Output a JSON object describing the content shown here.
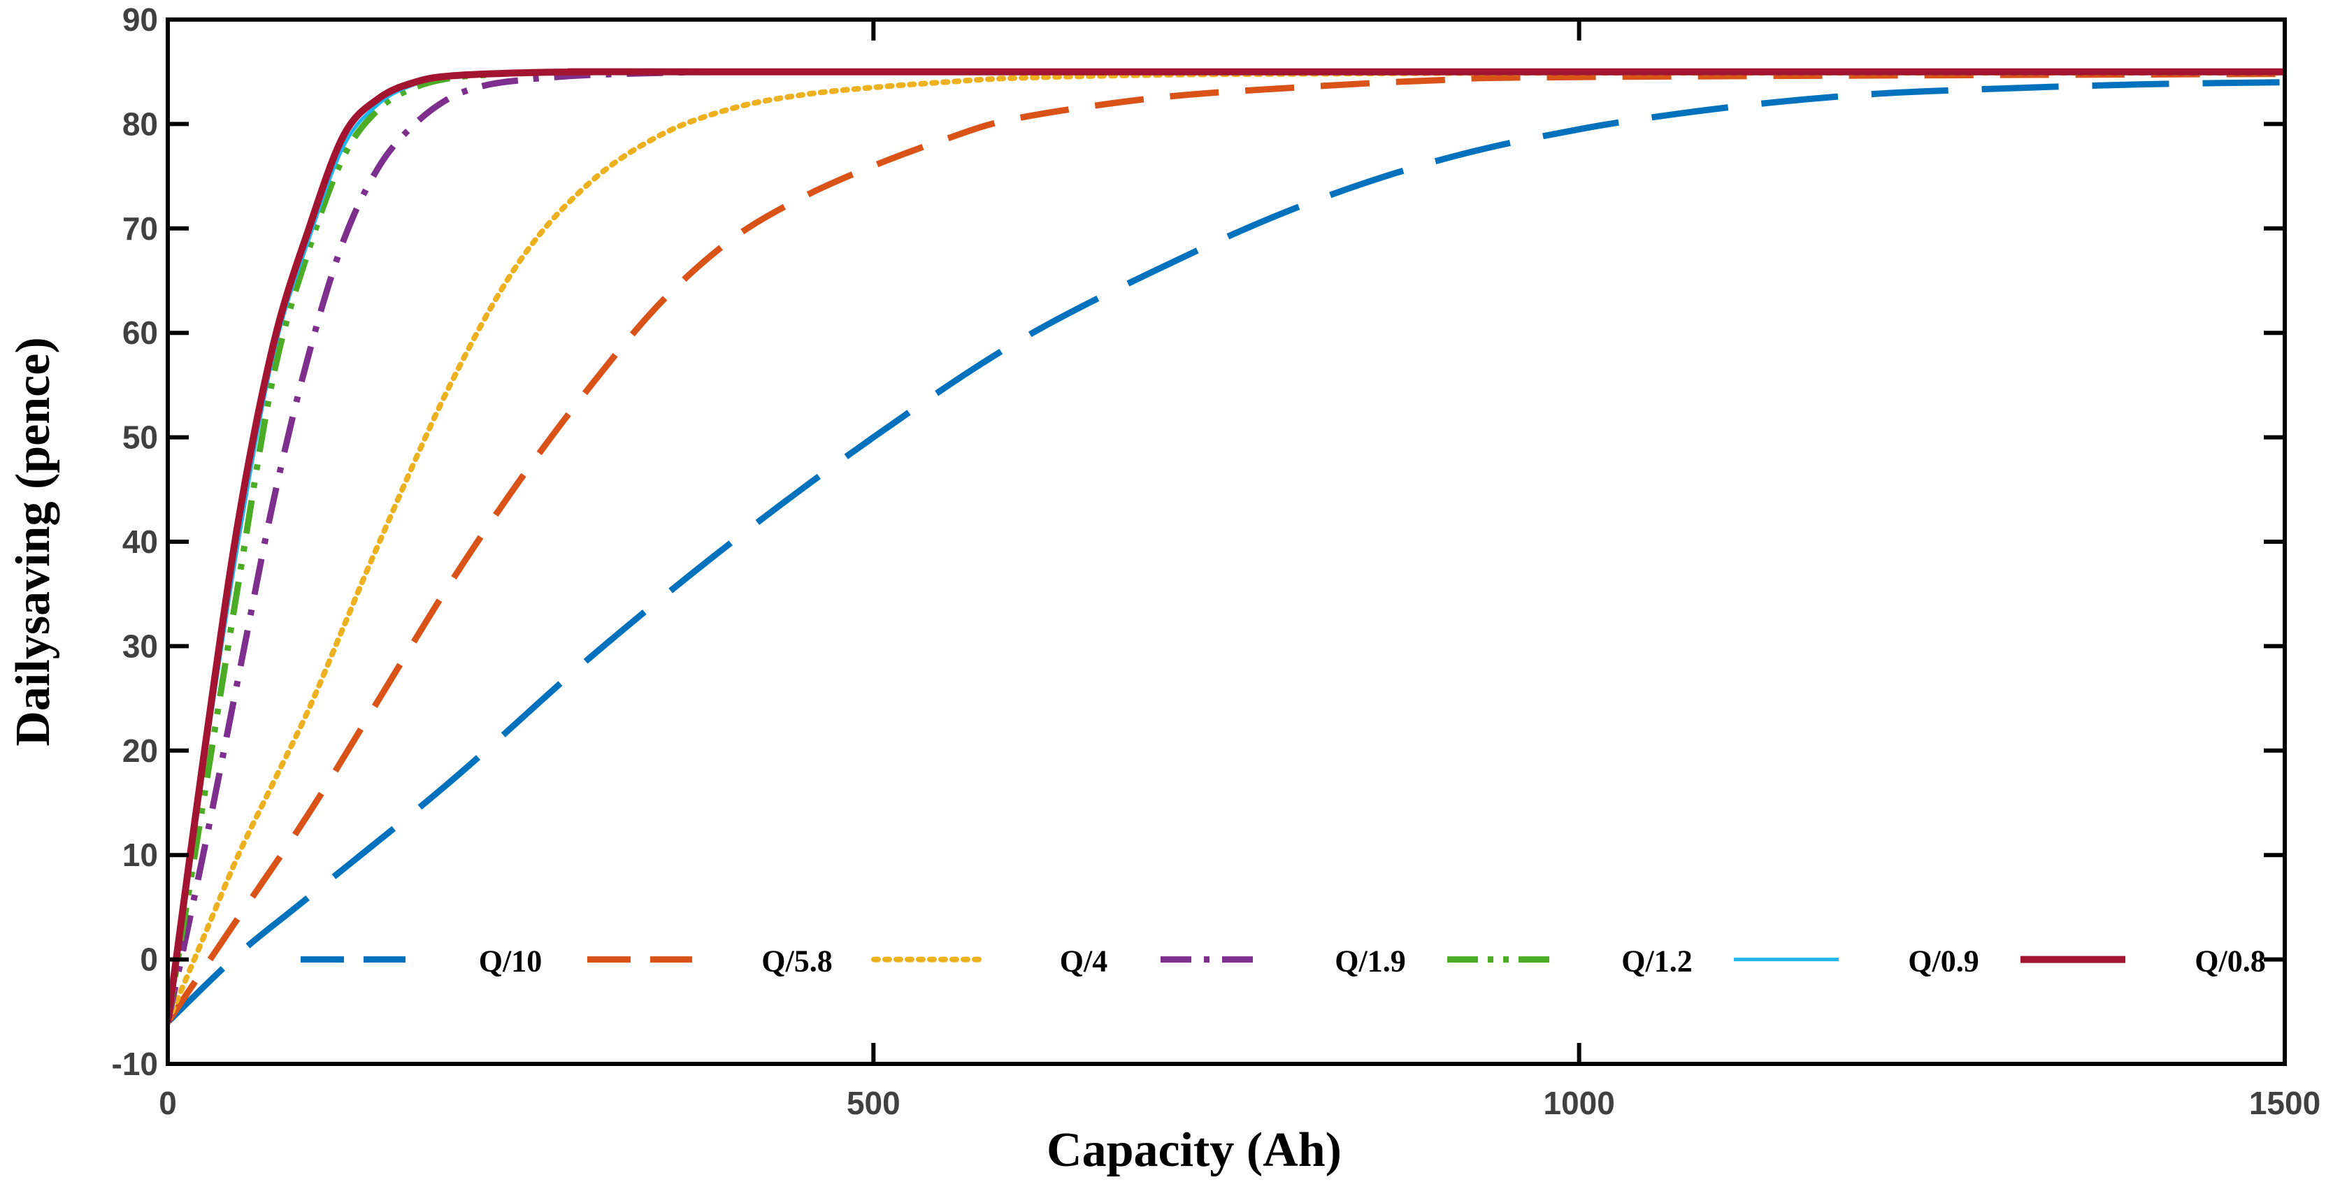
{
  "chart_data": {
    "type": "line",
    "title": "",
    "xlabel": "Capacity (Ah)",
    "ylabel": "Dailysaving (pence)",
    "xlim": [
      0,
      1500
    ],
    "ylim": [
      -10,
      90
    ],
    "xticks": [
      0,
      500,
      1000,
      1500
    ],
    "xtick_labels": [
      "0",
      "500",
      "1000",
      "1500"
    ],
    "yticks": [
      -10,
      0,
      10,
      20,
      30,
      40,
      50,
      60,
      70,
      80,
      90
    ],
    "ytick_labels": [
      "-10",
      "0",
      "10",
      "20",
      "30",
      "40",
      "50",
      "60",
      "70",
      "80",
      "90"
    ],
    "grid": false,
    "legend": {
      "location": "bottom",
      "orientation": "horizontal"
    },
    "series": [
      {
        "name": "Q/10",
        "color": "#0072BD",
        "style": "long-dash",
        "x": [
          0,
          50,
          100,
          200,
          300,
          400,
          500,
          600,
          700,
          800,
          900,
          1000,
          1100,
          1200,
          1300,
          1400,
          1500
        ],
        "y": [
          -6,
          0.5,
          6,
          17,
          29,
          40,
          50,
          59,
          66,
          72,
          76.5,
          79.5,
          81.5,
          82.8,
          83.4,
          83.8,
          84
        ]
      },
      {
        "name": "Q/5.8",
        "color": "#D95319",
        "style": "dash",
        "x": [
          0,
          50,
          100,
          150,
          200,
          250,
          300,
          350,
          400,
          450,
          500,
          550,
          600,
          700,
          800,
          900,
          1000,
          1500
        ],
        "y": [
          -6,
          4,
          14,
          25,
          36,
          46,
          55,
          63,
          69,
          73,
          76,
          78.5,
          80.5,
          82.5,
          83.5,
          84.2,
          84.5,
          84.8
        ]
      },
      {
        "name": "Q/4",
        "color": "#EDB120",
        "style": "dot",
        "x": [
          0,
          25,
          50,
          75,
          100,
          125,
          150,
          200,
          250,
          300,
          350,
          400,
          450,
          500,
          550,
          600,
          700,
          800,
          1000,
          1500
        ],
        "y": [
          -6,
          2,
          10,
          17,
          24,
          32,
          40,
          55,
          67,
          74.5,
          79,
          81.5,
          82.8,
          83.5,
          84,
          84.4,
          84.7,
          84.8,
          84.9,
          84.9
        ]
      },
      {
        "name": "Q/1.9",
        "color": "#7E2F8E",
        "style": "dashdot",
        "x": [
          0,
          25,
          50,
          75,
          100,
          125,
          150,
          175,
          200,
          225,
          250,
          275,
          300,
          350,
          400,
          500,
          1500
        ],
        "y": [
          -6,
          10,
          27,
          44,
          58,
          69,
          76,
          80,
          82.5,
          83.7,
          84.2,
          84.5,
          84.7,
          84.9,
          85,
          85,
          85
        ]
      },
      {
        "name": "Q/1.2",
        "color": "#4DAC26",
        "style": "dashdotdot",
        "x": [
          0,
          25,
          50,
          75,
          100,
          125,
          150,
          175,
          200,
          225,
          250,
          300,
          400,
          1500
        ],
        "y": [
          -6,
          15,
          36,
          56,
          68,
          77,
          81.5,
          83.5,
          84.4,
          84.7,
          84.9,
          85,
          85,
          85
        ]
      },
      {
        "name": "Q/0.9",
        "color": "#1EB6F0",
        "style": "solid-thin",
        "x": [
          0,
          25,
          50,
          75,
          100,
          125,
          150,
          175,
          200,
          250,
          300,
          400,
          1500
        ],
        "y": [
          -6,
          18,
          40,
          58,
          69,
          78,
          82,
          83.8,
          84.5,
          84.9,
          85,
          85,
          85
        ]
      },
      {
        "name": "Q/0.8",
        "color": "#A2142F",
        "style": "solid",
        "x": [
          0,
          25,
          50,
          75,
          100,
          125,
          150,
          175,
          200,
          250,
          300,
          400,
          1500
        ],
        "y": [
          -6,
          19,
          42,
          59,
          70,
          79,
          82.5,
          84,
          84.6,
          84.9,
          85,
          85,
          85
        ]
      }
    ]
  }
}
